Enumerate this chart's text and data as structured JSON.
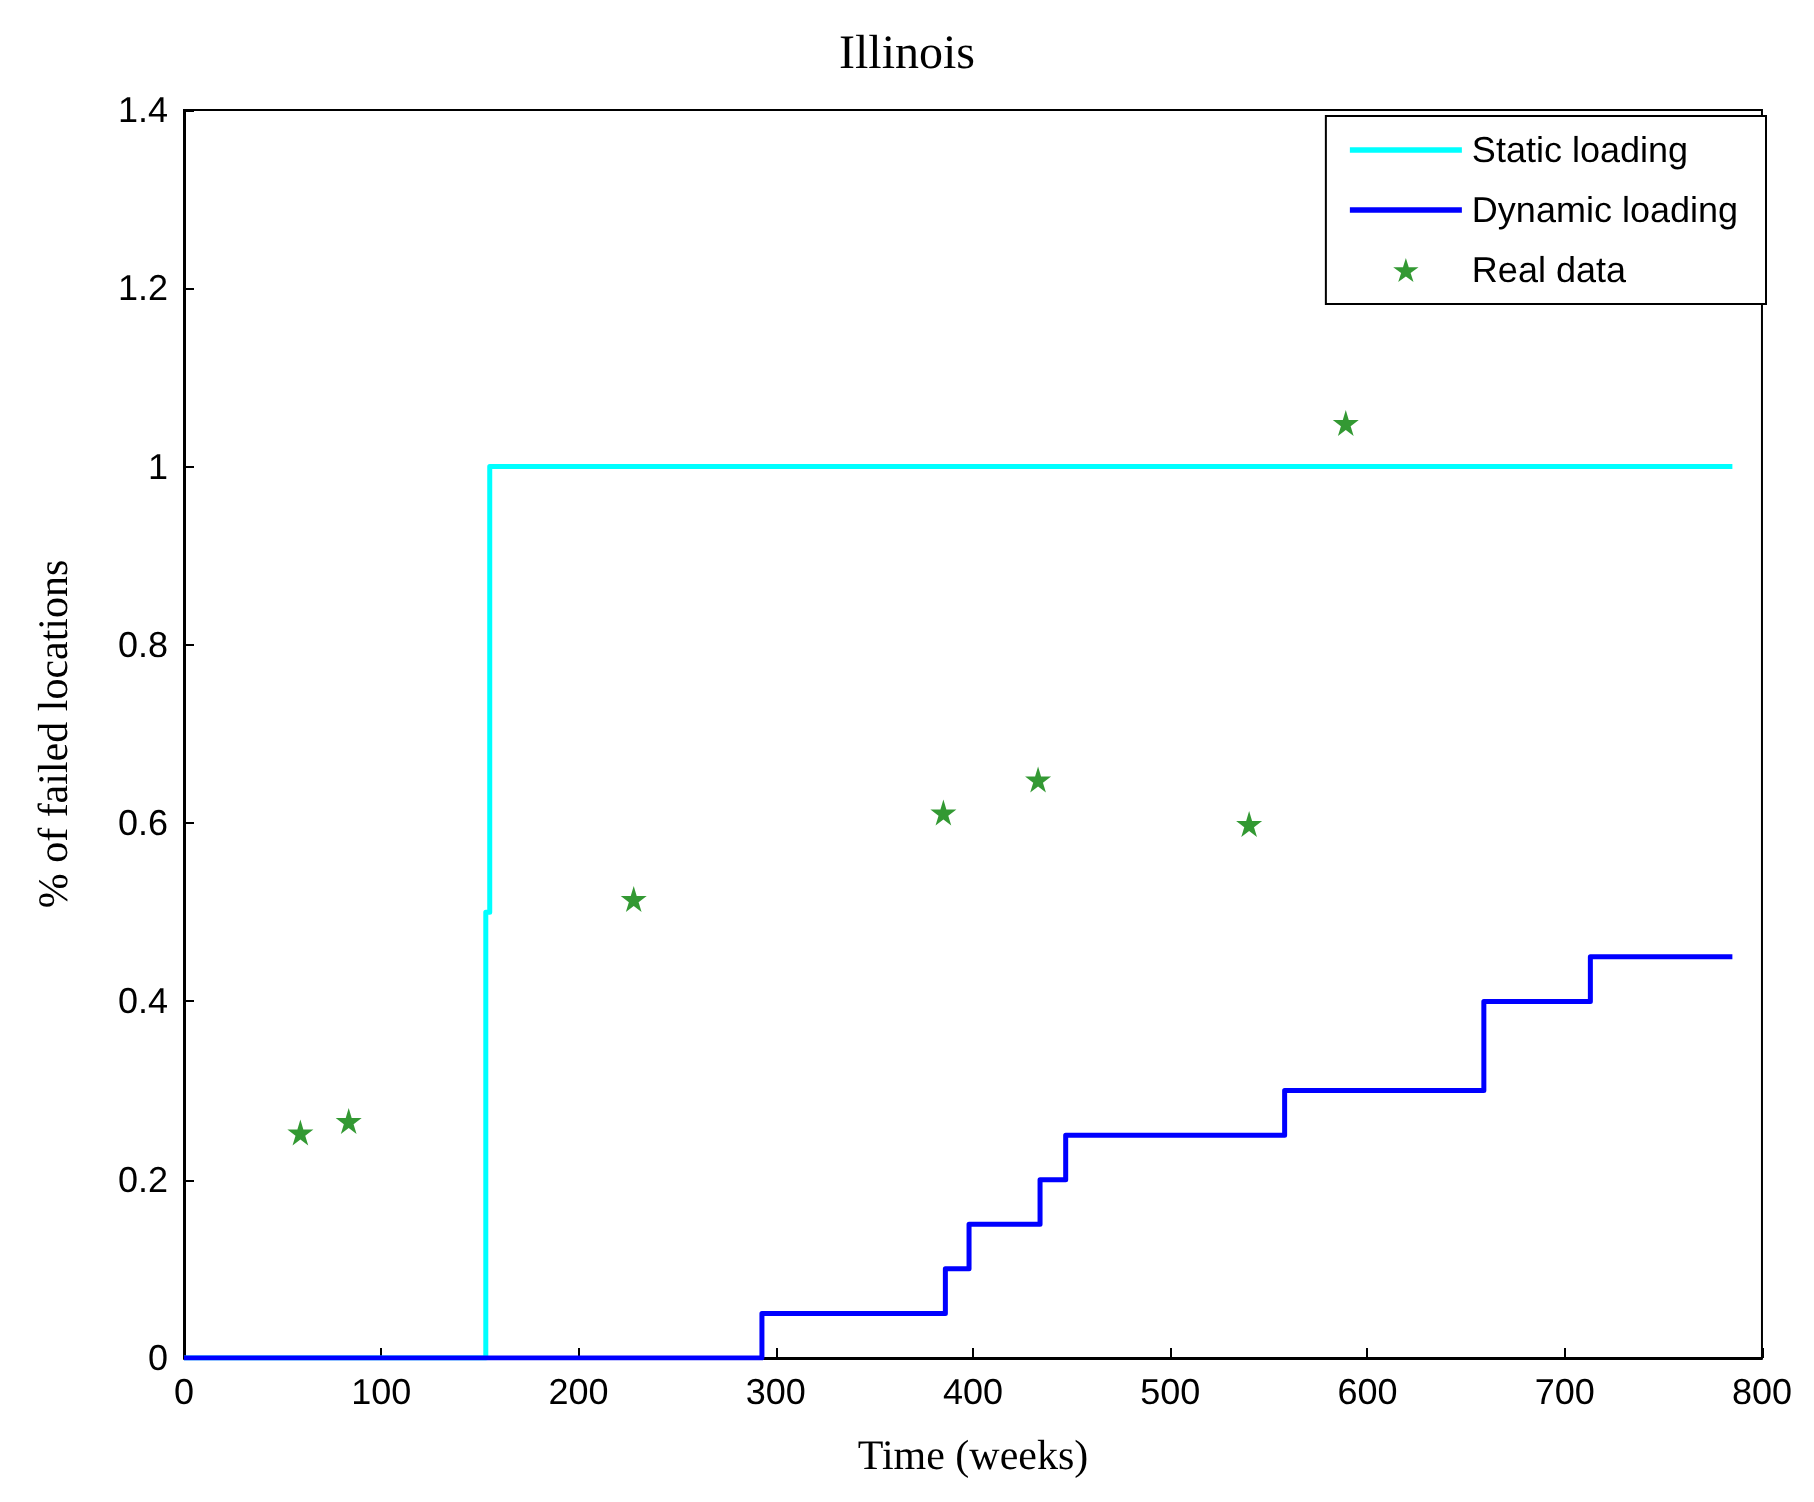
{
  "chart_data": {
    "type": "step",
    "title": "Illinois",
    "xlabel": "Time (weeks)",
    "ylabel": "% of failed locations",
    "xlim": [
      0,
      800
    ],
    "xticks": [
      0,
      100,
      200,
      300,
      400,
      500,
      600,
      700,
      800
    ],
    "ylim": [
      0,
      1.4
    ],
    "yticks": [
      0,
      0.2,
      0.4,
      0.6,
      0.8,
      1,
      1.2,
      1.4
    ],
    "grid": false,
    "legend": "top right",
    "series": [
      {
        "name": "Static loading",
        "color": "#00ffff",
        "marker": "none",
        "line_style": "solid",
        "x": [
          0,
          153,
          155,
          785
        ],
        "values": [
          0,
          0.5,
          1,
          1
        ]
      },
      {
        "name": "Dynamic loading",
        "color": "#0000ff",
        "marker": "none",
        "line_style": "solid",
        "x": [
          0,
          293,
          386,
          398,
          434,
          447,
          558,
          659,
          713,
          785
        ],
        "values": [
          0,
          0.05,
          0.1,
          0.15,
          0.2,
          0.25,
          0.3,
          0.4,
          0.45,
          0.45
        ]
      },
      {
        "name": "Real data",
        "type": "scatter",
        "color": "#008000",
        "marker": "star",
        "x": [
          59,
          83.5,
          228,
          385,
          433,
          540,
          589
        ],
        "values": [
          0.253,
          0.266,
          0.515,
          0.612,
          0.649,
          0.599,
          1.049
        ]
      }
    ]
  }
}
